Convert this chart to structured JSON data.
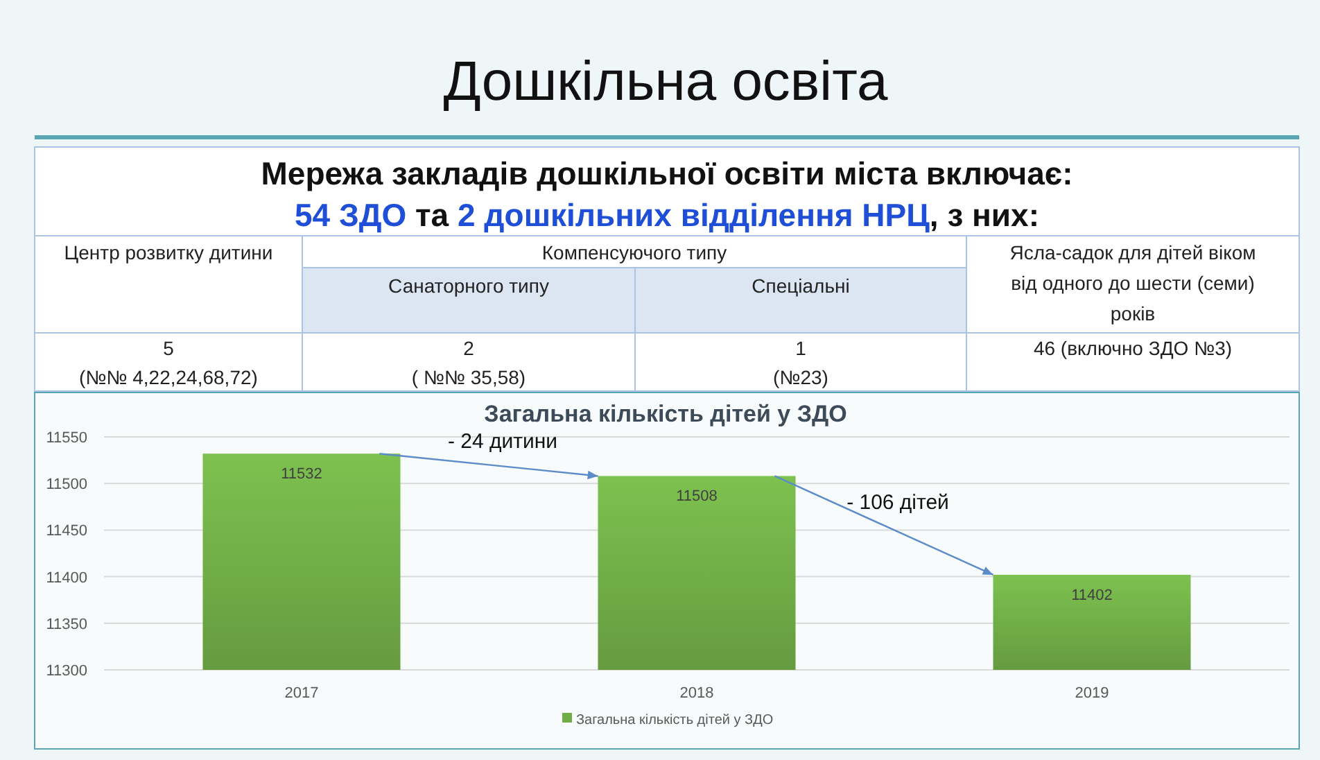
{
  "chart_data": [
    {
      "type": "other",
      "title": "Дошкільна освіта",
      "annotations": [
        "Мережа закладів дошкільної освіти міста включає:",
        "54 ЗДО",
        "та",
        "2 дошкільних відділення НРЦ",
        ", з них:",
        "Центр розвитку дитини",
        "Компенсуючого типу",
        "Санаторного типу",
        "Спеціальні",
        "Ясла-садок для дітей віком від одного до шести (семи) років",
        "5",
        "(№№ 4,22,24,68,72)",
        "2",
        "( №№ 35,58)",
        "1",
        "(№23)",
        "46 (включно ЗДО №3)"
      ]
    },
    {
      "type": "bar",
      "title": "Загальна кількість дітей у ЗДО",
      "categories": [
        "2017",
        "2018",
        "2019"
      ],
      "series": [
        {
          "name": "Загальна кількість дітей у ЗДО",
          "color": "#70ad47",
          "values": [
            11532,
            11508,
            11402
          ]
        }
      ],
      "ylim": [
        11300,
        11550
      ],
      "yticks": [
        11300,
        11350,
        11400,
        11450,
        11500,
        11550
      ],
      "grid": true,
      "data_labels": true,
      "legend": "bottom",
      "annotations": [
        "- 24 дитини",
        "- 106 дітей"
      ]
    }
  ]
}
